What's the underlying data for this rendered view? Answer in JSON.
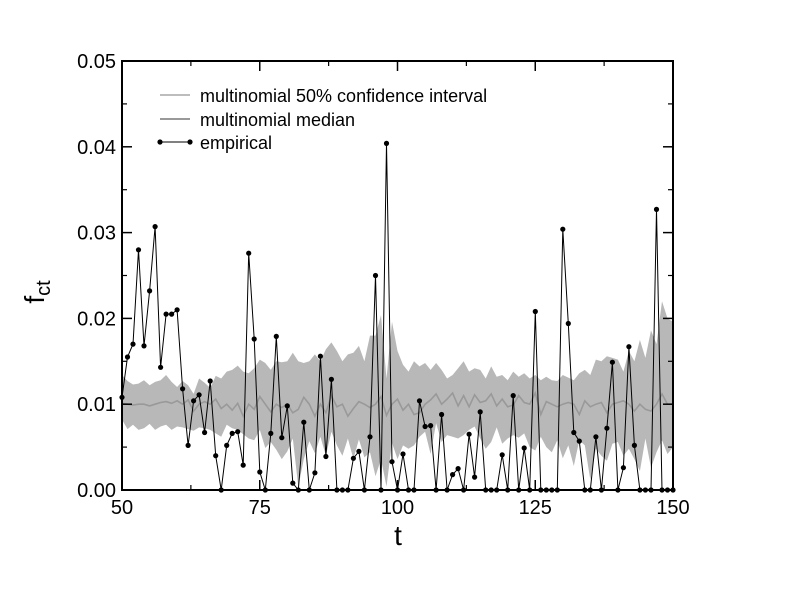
{
  "chart_data": {
    "type": "line",
    "xlabel": "t",
    "ylabel_main": "f",
    "ylabel_sub": "ct",
    "xlim": [
      50,
      150
    ],
    "ylim": [
      0,
      0.05
    ],
    "x_ticks": [
      50,
      75,
      100,
      125,
      150
    ],
    "x_tick_labels": [
      "50",
      "75",
      "100",
      "125",
      "150"
    ],
    "y_ticks": [
      0,
      0.01,
      0.02,
      0.03,
      0.04,
      0.05
    ],
    "y_tick_labels": [
      "0.00",
      "0.01",
      "0.02",
      "0.03",
      "0.04",
      "0.05"
    ],
    "legend": [
      "multinomial 50% confidence interval",
      "multinomial median",
      "empirical"
    ],
    "legend_position": "top-left",
    "grid": false,
    "colors": {
      "band": "#b8b8b8",
      "legend_band": "#bdbdbd",
      "median": "#999999",
      "empirical": "#000000"
    },
    "x": [
      50,
      51,
      52,
      53,
      54,
      55,
      56,
      57,
      58,
      59,
      60,
      61,
      62,
      63,
      64,
      65,
      66,
      67,
      68,
      69,
      70,
      71,
      72,
      73,
      74,
      75,
      76,
      77,
      78,
      79,
      80,
      81,
      82,
      83,
      84,
      85,
      86,
      87,
      88,
      89,
      90,
      91,
      92,
      93,
      94,
      95,
      96,
      97,
      98,
      99,
      100,
      101,
      102,
      103,
      104,
      105,
      106,
      107,
      108,
      109,
      110,
      111,
      112,
      113,
      114,
      115,
      116,
      117,
      118,
      119,
      120,
      121,
      122,
      123,
      124,
      125,
      126,
      127,
      128,
      129,
      130,
      131,
      132,
      133,
      134,
      135,
      136,
      137,
      138,
      139,
      140,
      141,
      142,
      143,
      144,
      145,
      146,
      147,
      148,
      149,
      150
    ],
    "series": [
      {
        "name": "empirical",
        "values": [
          0.0108,
          0.0155,
          0.017,
          0.028,
          0.0168,
          0.0232,
          0.0307,
          0.0143,
          0.0205,
          0.0205,
          0.021,
          0.0118,
          0.0052,
          0.0104,
          0.0111,
          0.0067,
          0.0127,
          0.004,
          0.0,
          0.0052,
          0.0066,
          0.0068,
          0.0029,
          0.0276,
          0.0176,
          0.0021,
          0.0,
          0.0066,
          0.0179,
          0.0061,
          0.0098,
          0.0008,
          0.0,
          0.0079,
          0.0,
          0.002,
          0.0156,
          0.0039,
          0.0129,
          0.0,
          0.0,
          0.0,
          0.0037,
          0.0045,
          0.0,
          0.0062,
          0.025,
          0.0,
          0.0404,
          0.0033,
          0.0,
          0.0042,
          0.0,
          0.0,
          0.0104,
          0.0074,
          0.0075,
          0.0,
          0.0088,
          0.0,
          0.0018,
          0.0025,
          0.0,
          0.0065,
          0.0015,
          0.0091,
          0.0,
          0.0,
          0.0,
          0.0041,
          0.0,
          0.011,
          0.0,
          0.0049,
          0.0,
          0.0208,
          0.0,
          0.0,
          0.0,
          0.0,
          0.0304,
          0.0194,
          0.0067,
          0.0057,
          0.0,
          0.0,
          0.0062,
          0.0,
          0.0072,
          0.0149,
          0.0,
          0.0026,
          0.0167,
          0.0052,
          0.0,
          0.0,
          0.0,
          0.0327,
          0.0,
          0.0,
          0.0
        ]
      },
      {
        "name": "multinomial median",
        "values": [
          0.0101,
          0.01,
          0.0099,
          0.01,
          0.01,
          0.0098,
          0.01,
          0.0102,
          0.0103,
          0.0101,
          0.0104,
          0.01,
          0.0105,
          0.0092,
          0.01,
          0.0103,
          0.01,
          0.0106,
          0.0095,
          0.01,
          0.0093,
          0.0101,
          0.0086,
          0.01,
          0.0094,
          0.0109,
          0.01,
          0.0091,
          0.01,
          0.0096,
          0.01,
          0.009,
          0.0094,
          0.0108,
          0.01,
          0.0086,
          0.01,
          0.009,
          0.011,
          0.0097,
          0.01,
          0.0086,
          0.0095,
          0.0103,
          0.01,
          0.0096,
          0.01,
          0.0109,
          0.0087,
          0.01,
          0.0106,
          0.0093,
          0.01,
          0.0088,
          0.009,
          0.01,
          0.0105,
          0.0112,
          0.01,
          0.0106,
          0.0113,
          0.0098,
          0.011,
          0.0097,
          0.0111,
          0.0102,
          0.0104,
          0.0112,
          0.0098,
          0.0106,
          0.0097,
          0.0099,
          0.011,
          0.0102,
          0.01,
          0.0113,
          0.0088,
          0.0103,
          0.01,
          0.0097,
          0.01,
          0.0102,
          0.01,
          0.0088,
          0.0104,
          0.0097,
          0.01,
          0.0102,
          0.009,
          0.01,
          0.0102,
          0.0104,
          0.01,
          0.0092,
          0.01,
          0.0094,
          0.0092,
          0.01,
          0.0112,
          0.01,
          0.01
        ]
      }
    ],
    "band": {
      "name": "multinomial 50% confidence interval",
      "lower": [
        0.0082,
        0.0071,
        0.0076,
        0.007,
        0.0072,
        0.0077,
        0.007,
        0.0074,
        0.0076,
        0.007,
        0.0074,
        0.0073,
        0.0071,
        0.0069,
        0.0073,
        0.0072,
        0.007,
        0.0066,
        0.0062,
        0.0076,
        0.0072,
        0.007,
        0.0065,
        0.006,
        0.0058,
        0.007,
        0.0049,
        0.0056,
        0.0047,
        0.0036,
        0.0045,
        0.006,
        0.0004,
        0.0036,
        0.0057,
        0.0043,
        0.0062,
        0.004,
        0.0068,
        0.0052,
        0.004,
        0.006,
        0.0036,
        0.0059,
        0.0038,
        0.0044,
        0.0016,
        0.0036,
        0.0004,
        0.0055,
        0.0036,
        0.0052,
        0.0048,
        0.0052,
        0.0062,
        0.0068,
        0.0042,
        0.0078,
        0.0056,
        0.0064,
        0.0062,
        0.006,
        0.0064,
        0.007,
        0.0074,
        0.006,
        0.0048,
        0.0056,
        0.0073,
        0.0054,
        0.006,
        0.0064,
        0.0061,
        0.0066,
        0.005,
        0.0046,
        0.0062,
        0.005,
        0.0044,
        0.0058,
        0.0037,
        0.0052,
        0.0028,
        0.0058,
        0.0052,
        0.0012,
        0.0048,
        0.004,
        0.0034,
        0.0054,
        0.0056,
        0.004,
        0.0048,
        0.0036,
        0.0022,
        0.006,
        0.0026,
        0.0044,
        0.0058,
        0.0042,
        0.005
      ],
      "upper": [
        0.0134,
        0.0127,
        0.0123,
        0.0124,
        0.0128,
        0.0122,
        0.0126,
        0.0128,
        0.0134,
        0.0126,
        0.012,
        0.0127,
        0.0122,
        0.0112,
        0.013,
        0.0125,
        0.0119,
        0.0133,
        0.013,
        0.0138,
        0.014,
        0.0145,
        0.0138,
        0.0136,
        0.0142,
        0.0152,
        0.0148,
        0.014,
        0.015,
        0.0149,
        0.015,
        0.016,
        0.015,
        0.0148,
        0.015,
        0.0158,
        0.015,
        0.0164,
        0.0172,
        0.0162,
        0.015,
        0.0158,
        0.016,
        0.0168,
        0.015,
        0.018,
        0.018,
        0.0204,
        0.013,
        0.0196,
        0.0162,
        0.0146,
        0.0138,
        0.015,
        0.0144,
        0.0148,
        0.014,
        0.0148,
        0.014,
        0.013,
        0.0134,
        0.0142,
        0.015,
        0.0138,
        0.0142,
        0.014,
        0.013,
        0.0144,
        0.0132,
        0.0134,
        0.0128,
        0.0138,
        0.0132,
        0.0136,
        0.013,
        0.0134,
        0.0128,
        0.0132,
        0.0128,
        0.0127,
        0.0134,
        0.0131,
        0.0128,
        0.0136,
        0.014,
        0.0134,
        0.0152,
        0.015,
        0.0156,
        0.0154,
        0.0152,
        0.0138,
        0.0162,
        0.015,
        0.0175,
        0.0154,
        0.0186,
        0.017,
        0.022,
        0.02,
        0.0196
      ]
    }
  }
}
